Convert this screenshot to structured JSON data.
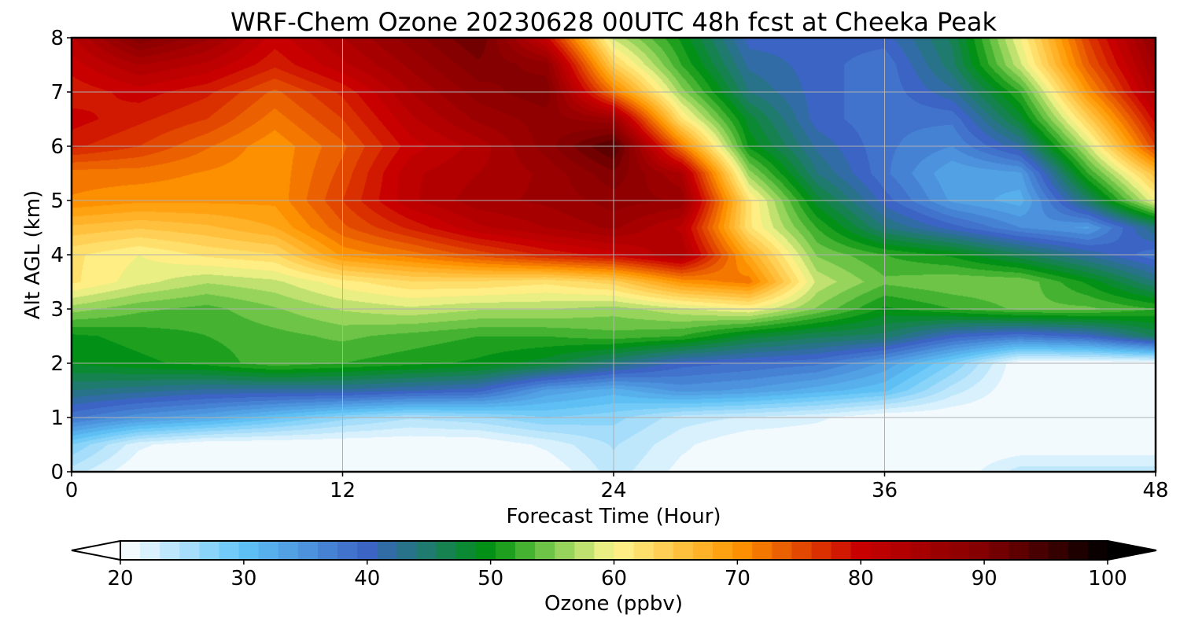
{
  "chart_data": {
    "type": "heatmap",
    "title": "WRF-Chem Ozone  20230628 00UTC 48h fcst at Cheeka Peak",
    "xlabel": "Forecast Time (Hour)",
    "ylabel": "Alt AGL (km)",
    "xlim": [
      0,
      48
    ],
    "ylim": [
      0,
      8
    ],
    "xticks": [
      0,
      12,
      24,
      36,
      48
    ],
    "yticks": [
      0,
      1,
      2,
      3,
      4,
      5,
      6,
      7,
      8
    ],
    "grid": true,
    "colorbar": {
      "label": "Ozone  (ppbv)",
      "min": 20,
      "max": 100,
      "ticks": [
        20,
        30,
        40,
        50,
        60,
        70,
        80,
        90,
        100
      ],
      "extend": "both",
      "stops": [
        {
          "value": 20,
          "color": "#ffffff"
        },
        {
          "value": 30,
          "color": "#5ec3f6"
        },
        {
          "value": 40,
          "color": "#3b64c4"
        },
        {
          "value": 50,
          "color": "#00930f"
        },
        {
          "value": 55,
          "color": "#7ccb4e"
        },
        {
          "value": 60,
          "color": "#fff68e"
        },
        {
          "value": 70,
          "color": "#ff9600"
        },
        {
          "value": 80,
          "color": "#c80000"
        },
        {
          "value": 90,
          "color": "#820000"
        },
        {
          "value": 100,
          "color": "#000000"
        }
      ]
    },
    "x": [
      0,
      3,
      6,
      9,
      12,
      15,
      18,
      21,
      24,
      27,
      30,
      33,
      36,
      39,
      42,
      45,
      48
    ],
    "y": [
      0,
      0.5,
      1,
      1.5,
      2,
      2.5,
      3,
      3.5,
      4,
      4.5,
      5,
      5.5,
      6,
      6.5,
      7,
      7.5,
      8
    ],
    "values": [
      [
        24,
        20,
        20,
        20,
        20,
        20,
        20,
        20,
        24,
        21,
        20,
        20,
        20,
        20,
        24,
        24,
        24
      ],
      [
        28,
        22,
        20,
        20,
        20,
        20,
        20,
        22,
        25,
        22,
        20,
        20,
        20,
        20,
        20,
        20,
        20
      ],
      [
        38,
        35,
        33,
        30,
        27,
        25,
        26,
        28,
        27,
        24,
        23,
        22,
        20,
        20,
        20,
        20,
        20
      ],
      [
        44,
        43,
        42,
        42,
        42,
        41,
        40,
        34,
        32,
        35,
        34,
        32,
        30,
        24,
        20,
        20,
        20
      ],
      [
        49,
        50,
        51,
        53,
        52,
        51,
        50,
        48,
        44,
        40,
        39,
        38,
        34,
        28,
        20,
        20,
        20
      ],
      [
        50,
        51,
        52,
        53,
        54,
        53,
        52,
        52,
        53,
        52,
        48,
        46,
        45,
        40,
        38,
        40,
        46
      ],
      [
        56,
        54,
        53,
        55,
        57,
        58,
        57,
        57,
        56,
        58,
        60,
        55,
        50,
        52,
        54,
        54,
        52
      ],
      [
        62,
        59,
        57,
        58,
        61,
        63,
        63,
        62,
        64,
        70,
        72,
        58,
        54,
        55,
        55,
        50,
        44
      ],
      [
        62,
        60,
        62,
        63,
        70,
        72,
        75,
        78,
        80,
        84,
        68,
        55,
        52,
        50,
        46,
        42,
        38
      ],
      [
        66,
        65,
        66,
        68,
        74,
        78,
        82,
        84,
        86,
        82,
        62,
        52,
        44,
        40,
        36,
        34,
        44
      ],
      [
        71,
        70,
        70,
        70,
        76,
        82,
        85,
        86,
        88,
        87,
        62,
        48,
        40,
        34,
        32,
        45,
        60
      ],
      [
        72,
        72,
        71,
        70,
        75,
        82,
        84,
        86,
        90,
        84,
        56,
        44,
        38,
        33,
        34,
        52,
        66
      ],
      [
        78,
        76,
        73,
        70,
        74,
        80,
        83,
        88,
        94,
        72,
        50,
        42,
        38,
        36,
        42,
        58,
        76
      ],
      [
        80,
        78,
        76,
        72,
        76,
        82,
        86,
        88,
        86,
        62,
        48,
        40,
        38,
        38,
        48,
        64,
        80
      ],
      [
        78,
        80,
        78,
        74,
        78,
        84,
        88,
        90,
        72,
        56,
        44,
        40,
        38,
        42,
        52,
        70,
        84
      ],
      [
        80,
        84,
        82,
        78,
        82,
        86,
        90,
        88,
        64,
        52,
        42,
        40,
        38,
        45,
        58,
        74,
        86
      ],
      [
        82,
        90,
        86,
        80,
        84,
        88,
        92,
        80,
        58,
        50,
        40,
        40,
        40,
        46,
        60,
        76,
        88
      ]
    ]
  }
}
